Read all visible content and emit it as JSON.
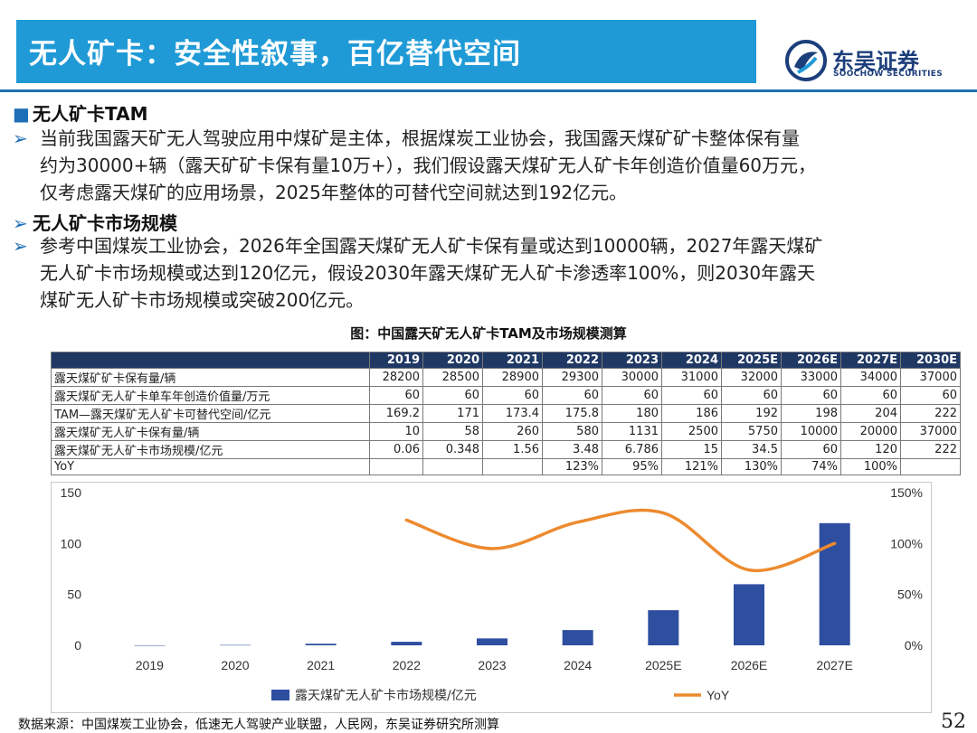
{
  "header": {
    "title": "无人矿卡：安全性叙事，百亿替代空间",
    "logo_cn": "东吴证券",
    "logo_en": "SOOCHOW SECURITIES",
    "brand_color": "#1f9ad6"
  },
  "sections": [
    {
      "marker": "■",
      "heading": "无人矿卡TAM"
    },
    {
      "marker": "➢",
      "heading": "无人矿卡市场规模"
    }
  ],
  "paragraphs": [
    {
      "marker": "➢",
      "lines": [
        "当前我国露天矿无人驾驶应用中煤矿是主体，根据煤炭工业协会，我国露天煤矿矿卡整体保有量",
        "约为30000+辆（露天矿矿卡保有量10万+），我们假设露天煤矿无人矿卡年创造价值量60万元，",
        "仅考虑露天煤矿的应用场景，2025年整体的可替代空间就达到192亿元。"
      ]
    },
    {
      "marker": "➢",
      "lines": [
        "参考中国煤炭工业协会，2026年全国露天煤矿无人矿卡保有量或达到10000辆，2027年露天煤矿",
        "无人矿卡市场规模或达到120亿元，假设2030年露天煤矿无人矿卡渗透率100%，则2030年露天",
        "煤矿无人矿卡市场规模或突破200亿元。"
      ]
    }
  ],
  "figure_title": "图：中国露天矿无人矿卡TAM及市场规模测算",
  "table": {
    "header_color": "#1f3864",
    "columns": [
      "2019",
      "2020",
      "2021",
      "2022",
      "2023",
      "2024",
      "2025E",
      "2026E",
      "2027E",
      "2030E"
    ],
    "rows": [
      {
        "label": "露天煤矿矿卡保有量/辆",
        "values": [
          "28200",
          "28500",
          "28900",
          "29300",
          "30000",
          "31000",
          "32000",
          "33000",
          "34000",
          "37000"
        ]
      },
      {
        "label": "露天煤矿无人矿卡单车年创造价值量/万元",
        "values": [
          "60",
          "60",
          "60",
          "60",
          "60",
          "60",
          "60",
          "60",
          "60",
          "60"
        ]
      },
      {
        "label": "TAM—露天煤矿无人矿卡可替代空间/亿元",
        "values": [
          "169.2",
          "171",
          "173.4",
          "175.8",
          "180",
          "186",
          "192",
          "198",
          "204",
          "222"
        ]
      },
      {
        "label": "露天煤矿无人矿卡保有量/辆",
        "values": [
          "10",
          "58",
          "260",
          "580",
          "1131",
          "2500",
          "5750",
          "10000",
          "20000",
          "37000"
        ]
      },
      {
        "label": "露天煤矿无人矿卡市场规模/亿元",
        "values": [
          "0.06",
          "0.348",
          "1.56",
          "3.48",
          "6.786",
          "15",
          "34.5",
          "60",
          "120",
          "222"
        ]
      },
      {
        "label": "YoY",
        "values": [
          "",
          "",
          "",
          "123%",
          "95%",
          "121%",
          "130%",
          "74%",
          "100%",
          ""
        ]
      }
    ]
  },
  "chart_data": {
    "type": "bar",
    "categories": [
      "2019",
      "2020",
      "2021",
      "2022",
      "2023",
      "2024",
      "2025E",
      "2026E",
      "2027E"
    ],
    "series": [
      {
        "name": "露天煤矿无人矿卡市场规模/亿元",
        "kind": "bar",
        "axis": "left",
        "color": "#2e4ea0",
        "values": [
          0.06,
          0.348,
          1.56,
          3.48,
          6.786,
          15,
          34.5,
          60,
          120
        ]
      },
      {
        "name": "YoY",
        "kind": "line",
        "axis": "right",
        "color": "#ed8a2f",
        "values": [
          null,
          null,
          null,
          123,
          95,
          121,
          130,
          74,
          100
        ]
      }
    ],
    "y_left": {
      "min": 0,
      "max": 150,
      "ticks": [
        "0",
        "50",
        "100",
        "150"
      ]
    },
    "y_right": {
      "min": 0,
      "max": 150,
      "ticks": [
        "0%",
        "50%",
        "100%",
        "150%"
      ]
    },
    "grid": false,
    "legend_position": "bottom"
  },
  "footer": {
    "source": "数据来源：中国煤炭工业协会，低速无人驾驶产业联盟，人民网，东吴证券研究所测算",
    "page_number": "52"
  }
}
